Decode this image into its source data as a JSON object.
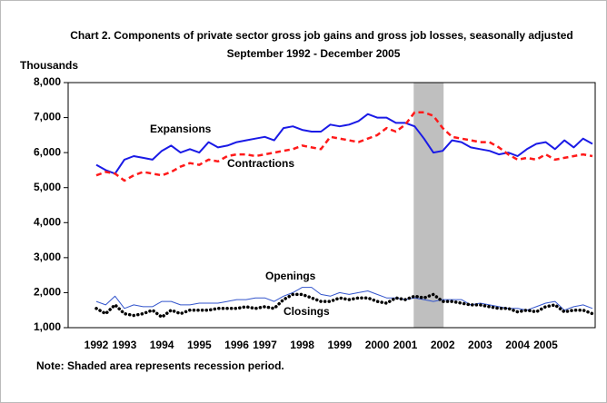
{
  "chart_data": {
    "type": "line",
    "title": "Chart 2. Components of private sector gross job gains and gross job losses, seasonally adjusted",
    "subtitle": "September 1992 - December 2005",
    "y_label": "Thousands",
    "note": "Note: Shaded area represents recession period.",
    "categories": [
      "1992",
      null,
      null,
      "1993",
      null,
      null,
      null,
      "1994",
      null,
      null,
      null,
      "1995",
      null,
      null,
      null,
      "1996",
      null,
      null,
      "1997",
      null,
      null,
      null,
      "1998",
      null,
      null,
      null,
      "1999",
      null,
      null,
      null,
      "2000",
      null,
      null,
      "2001",
      null,
      null,
      null,
      "2002",
      null,
      null,
      null,
      "2003",
      null,
      null,
      null,
      "2004",
      null,
      null,
      "2005",
      null,
      null,
      null,
      null,
      null
    ],
    "recession": [
      34,
      37
    ],
    "ylim": [
      1000,
      8000
    ],
    "yticks": [
      {
        "value": 1000,
        "label": "1,000"
      },
      {
        "value": 2000,
        "label": "2,000"
      },
      {
        "value": 3000,
        "label": "3,000"
      },
      {
        "value": 4000,
        "label": "4,000"
      },
      {
        "value": 5000,
        "label": "5,000"
      },
      {
        "value": 6000,
        "label": "6,000"
      },
      {
        "value": 7000,
        "label": "7,000"
      },
      {
        "value": 8000,
        "label": "8,000"
      }
    ],
    "series": [
      {
        "name": "Expansions",
        "color": "#1a1ae6",
        "style": "solid",
        "values": [
          5650,
          5500,
          5400,
          5800,
          5900,
          5850,
          5800,
          6050,
          6200,
          6000,
          6100,
          6000,
          6300,
          6150,
          6200,
          6300,
          6350,
          6400,
          6450,
          6350,
          6700,
          6750,
          6650,
          6600,
          6600,
          6800,
          6750,
          6800,
          6900,
          7100,
          7000,
          7000,
          6850,
          6850,
          6750,
          6400,
          6000,
          6050,
          6350,
          6300,
          6150,
          6100,
          6050,
          5950,
          6000,
          5900,
          6100,
          6250,
          6300,
          6100,
          6350,
          6150,
          6400,
          6250
        ]
      },
      {
        "name": "Contractions",
        "color": "#ff1a1a",
        "style": "dashed",
        "values": [
          5350,
          5450,
          5400,
          5200,
          5350,
          5450,
          5400,
          5350,
          5450,
          5600,
          5700,
          5650,
          5800,
          5750,
          5900,
          5950,
          5950,
          5900,
          5950,
          6000,
          6050,
          6100,
          6200,
          6150,
          6100,
          6450,
          6400,
          6350,
          6300,
          6400,
          6500,
          6700,
          6600,
          6800,
          7150,
          7150,
          7050,
          6700,
          6450,
          6400,
          6350,
          6300,
          6300,
          6150,
          5950,
          5800,
          5850,
          5800,
          5950,
          5800,
          5850,
          5900,
          5950,
          5900
        ]
      },
      {
        "name": "Openings",
        "color": "#3355cc",
        "style": "thin",
        "values": [
          1750,
          1650,
          1900,
          1550,
          1650,
          1600,
          1600,
          1750,
          1750,
          1650,
          1650,
          1700,
          1700,
          1700,
          1750,
          1800,
          1800,
          1850,
          1850,
          1750,
          1900,
          2000,
          2150,
          2150,
          1950,
          1900,
          2000,
          1950,
          2000,
          2050,
          1950,
          1850,
          1850,
          1800,
          1850,
          1800,
          1750,
          1800,
          1800,
          1800,
          1650,
          1700,
          1650,
          1600,
          1550,
          1550,
          1500,
          1600,
          1700,
          1750,
          1500,
          1600,
          1650,
          1550
        ]
      },
      {
        "name": "Closings",
        "color": "#000000",
        "style": "dotted",
        "values": [
          1550,
          1400,
          1650,
          1400,
          1350,
          1400,
          1500,
          1300,
          1500,
          1400,
          1500,
          1500,
          1500,
          1550,
          1550,
          1550,
          1600,
          1550,
          1600,
          1550,
          1800,
          1950,
          1950,
          1850,
          1750,
          1750,
          1850,
          1800,
          1850,
          1850,
          1750,
          1700,
          1850,
          1800,
          1900,
          1850,
          1950,
          1750,
          1750,
          1700,
          1650,
          1650,
          1600,
          1550,
          1550,
          1450,
          1500,
          1450,
          1600,
          1650,
          1450,
          1500,
          1500,
          1400
        ]
      }
    ]
  }
}
